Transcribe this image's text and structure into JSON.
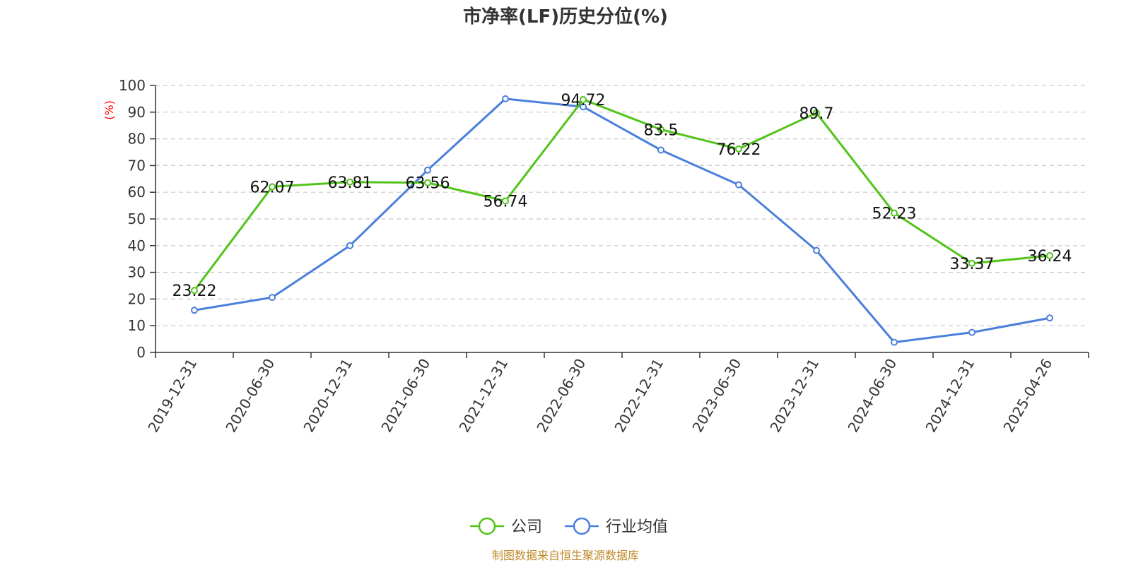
{
  "chart_data": {
    "type": "line",
    "title": "市净率(LF)历史分位(%)",
    "ylabel": "(%)",
    "ylim": [
      0,
      100
    ],
    "yticks": [
      0,
      10,
      20,
      30,
      40,
      50,
      60,
      70,
      80,
      90,
      100
    ],
    "grid": true,
    "legend_position": "bottom",
    "categories": [
      "2019-12-31",
      "2020-06-30",
      "2020-12-31",
      "2021-06-30",
      "2021-12-31",
      "2022-06-30",
      "2022-12-31",
      "2023-06-30",
      "2023-12-31",
      "2024-06-30",
      "2024-12-31",
      "2025-04-26"
    ],
    "series": [
      {
        "name": "公司",
        "color": "#52c41a",
        "show_labels": true,
        "values": [
          23.22,
          62.07,
          63.81,
          63.56,
          56.74,
          94.72,
          83.5,
          76.22,
          89.7,
          52.23,
          33.37,
          36.24
        ]
      },
      {
        "name": "行业均值",
        "color": "#4a7fdc",
        "show_labels": false,
        "values": [
          15.8,
          20.6,
          40.0,
          68.3,
          95.0,
          92.0,
          75.8,
          62.8,
          38.2,
          3.8,
          7.5,
          12.9
        ]
      }
    ],
    "source": "制图数据来自恒生聚源数据库"
  }
}
